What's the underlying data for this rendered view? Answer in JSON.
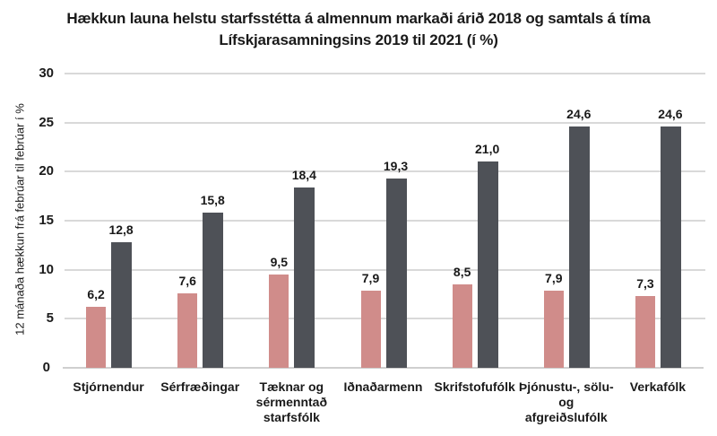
{
  "title_line1": "Hækkun launa helstu starfsstétta á almennum markaði árið 2018 og samtals á tíma",
  "title_line2": "Lífskjarasamningsins 2019 til 2021 (í %)",
  "chart_data": {
    "type": "bar",
    "title": "Hækkun launa helstu starfsstétta á almennum markaði árið 2018 og samtals á tíma Lífskjarasamningsins 2019 til 2021 (í %)",
    "xlabel": "",
    "ylabel": "12 mánaða hækkun frá febrúar til febrúar í %",
    "ylim": [
      0,
      30
    ],
    "yticks": [
      0,
      5,
      10,
      15,
      20,
      25,
      30
    ],
    "grid": true,
    "legend": null,
    "categories": [
      "Stjórnendur",
      "Sérfræðingar",
      "Tæknar og sérmenntað starfsfólk",
      "Iðnaðarmenn",
      "Skrifstofufólk",
      "Þjónustu-, sölu- og afgreiðslufólk",
      "Verkafólk"
    ],
    "category_lines": [
      [
        "Stjórnendur"
      ],
      [
        "Sérfræðingar"
      ],
      [
        "Tæknar og",
        "sérmenntað",
        "starfsfólk"
      ],
      [
        "Iðnaðarmenn"
      ],
      [
        "Skrifstofufólk"
      ],
      [
        "Þjónustu-, sölu-",
        "og afgreiðslufólk"
      ],
      [
        "Verkafólk"
      ]
    ],
    "series": [
      {
        "name": "2018",
        "color": "#d08c8a",
        "values": [
          6.2,
          7.6,
          9.5,
          7.9,
          8.5,
          7.9,
          7.3
        ],
        "labels": [
          "6,2",
          "7,6",
          "9,5",
          "7,9",
          "8,5",
          "7,9",
          "7,3"
        ]
      },
      {
        "name": "2019-2021",
        "color": "#4e5157",
        "values": [
          12.8,
          15.8,
          18.4,
          19.3,
          21.0,
          24.6,
          24.6
        ],
        "labels": [
          "12,8",
          "15,8",
          "18,4",
          "19,3",
          "21,0",
          "24,6",
          "24,6"
        ]
      }
    ]
  }
}
